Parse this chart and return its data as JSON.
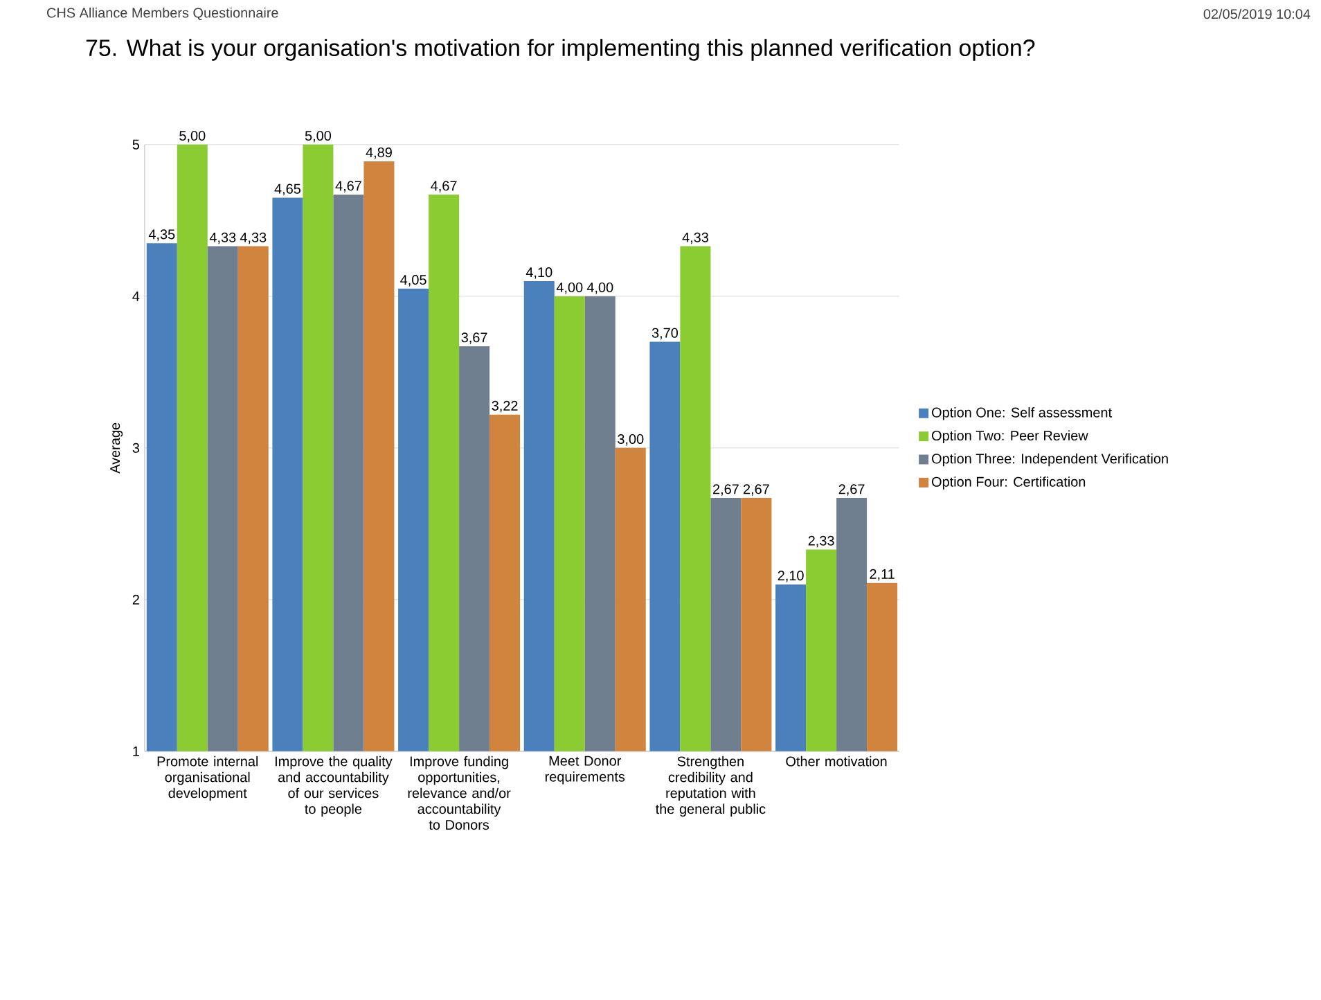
{
  "chart_data": {
    "type": "bar",
    "title": "75. What is your organisation's motivation for implementing this planned verification option?",
    "annotations": [
      "CHS Alliance Members Questionnaire",
      "02/05/2019 10:04"
    ],
    "ylabel": "Average",
    "categories": [
      "Promote internal organisational development",
      "Improve the quality and accountability of our services to people",
      "Improve funding opportunities, relevance and/or accountability to Donors",
      "Meet Donor requirements",
      "Strengthen credibility and reputation with the general public",
      "Other motivation"
    ],
    "series": [
      {
        "name": "Option One: Self assessment",
        "color": "#4a81bd",
        "values": [
          4.35,
          4.65,
          4.05,
          4.1,
          3.7,
          2.1
        ],
        "value_labels": [
          "4,35",
          "4,65",
          "4,05",
          "4,10",
          "3,70",
          "2,10"
        ]
      },
      {
        "name": "Option Two: Peer Review",
        "color": "#8ccc33",
        "values": [
          5.0,
          5.0,
          4.67,
          4.0,
          4.33,
          2.33
        ],
        "value_labels": [
          "5,00",
          "5,00",
          "4,67",
          "4,00",
          "4,33",
          "2,33"
        ]
      },
      {
        "name": "Option Three: Independent Verification",
        "color": "#6f7f8f",
        "values": [
          4.33,
          4.67,
          3.67,
          4.0,
          2.67,
          2.67
        ],
        "value_labels": [
          "4,33",
          "4,67",
          "3,67",
          "4,00",
          "2,67",
          "2,67"
        ]
      },
      {
        "name": "Option Four: Certification",
        "color": "#d0843e",
        "values": [
          4.33,
          4.89,
          3.22,
          3.0,
          2.67,
          2.11
        ],
        "value_labels": [
          "4,33",
          "4,89",
          "3,22",
          "3,00",
          "2,67",
          "2,11"
        ]
      }
    ],
    "ylim": [
      1,
      5
    ],
    "yticks": [
      1,
      2,
      3,
      4,
      5
    ],
    "grid": "y",
    "legend": "right"
  }
}
